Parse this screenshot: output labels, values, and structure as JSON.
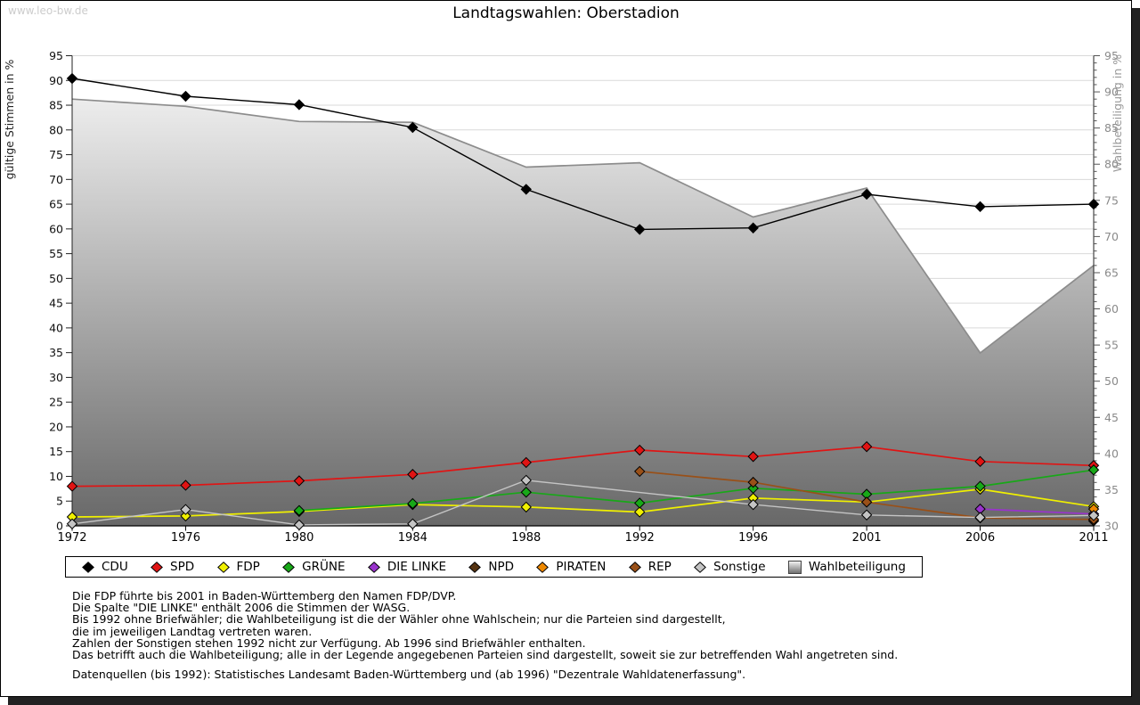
{
  "watermark": "www.leo-bw.de",
  "title": "Landtagswahlen: Oberstadion",
  "chart_data": {
    "type": "line",
    "title": "Landtagswahlen: Oberstadion",
    "categories": [
      "1972",
      "1976",
      "1980",
      "1984",
      "1988",
      "1992",
      "1996",
      "2001",
      "2006",
      "2011"
    ],
    "left_axis": {
      "label": "gültige Stimmen in %",
      "min": 0,
      "max": 95,
      "step": 5
    },
    "right_axis": {
      "label": "Wahlbeteiligung in %",
      "min": 30,
      "max": 95,
      "step": 5,
      "minor_step": 1
    },
    "grid": true,
    "legend_position": "bottom",
    "area_fill_top": "#fafafa",
    "area_fill_bottom": "#686868",
    "series": [
      {
        "name": "CDU",
        "type": "line",
        "axis": "left",
        "color": "#000000",
        "values": [
          90.4,
          86.8,
          85.1,
          80.5,
          68.0,
          59.9,
          60.2,
          67.0,
          64.5,
          65.0
        ]
      },
      {
        "name": "SPD",
        "type": "line",
        "axis": "left",
        "color": "#e01414",
        "values": [
          8.0,
          8.2,
          9.1,
          10.4,
          12.8,
          15.3,
          14.0,
          16.0,
          13.0,
          12.2
        ]
      },
      {
        "name": "FDP",
        "type": "line",
        "axis": "left",
        "color": "#f0f000",
        "values": [
          1.8,
          2.0,
          2.9,
          4.3,
          3.8,
          2.8,
          5.6,
          4.8,
          7.4,
          3.9
        ]
      },
      {
        "name": "GRÜNE",
        "type": "line",
        "axis": "left",
        "color": "#18a818",
        "values": [
          null,
          null,
          3.1,
          4.5,
          6.8,
          4.6,
          7.6,
          6.4,
          8.0,
          11.3
        ]
      },
      {
        "name": "DIE LINKE",
        "type": "line",
        "axis": "left",
        "color": "#9933cc",
        "values": [
          null,
          null,
          null,
          null,
          null,
          null,
          null,
          null,
          3.4,
          2.4
        ]
      },
      {
        "name": "NPD",
        "type": "line",
        "axis": "left",
        "color": "#553311",
        "values": [
          null,
          null,
          null,
          null,
          null,
          null,
          null,
          null,
          null,
          1.0
        ]
      },
      {
        "name": "PIRATEN",
        "type": "line",
        "axis": "left",
        "color": "#ee8800",
        "values": [
          null,
          null,
          null,
          null,
          null,
          null,
          null,
          null,
          null,
          3.4
        ]
      },
      {
        "name": "REP",
        "type": "line",
        "axis": "left",
        "color": "#995018",
        "values": [
          null,
          null,
          null,
          null,
          null,
          11.0,
          8.8,
          4.8,
          1.6,
          1.3
        ]
      },
      {
        "name": "Sonstige",
        "type": "line",
        "axis": "left",
        "color": "#c4c4c4",
        "values": [
          0.4,
          3.3,
          0.2,
          0.4,
          9.2,
          null,
          4.3,
          2.2,
          1.7,
          2.1
        ]
      },
      {
        "name": "Wahlbeteiligung",
        "type": "area",
        "axis": "right",
        "color": "#8c8c8c",
        "values": [
          89.0,
          88.0,
          85.9,
          85.8,
          79.6,
          80.2,
          72.7,
          76.7,
          53.9,
          66.0
        ]
      }
    ]
  },
  "footnotes": [
    "Die FDP führte bis 2001 in Baden-Württemberg den Namen FDP/DVP.",
    "Die Spalte \"DIE LINKE\" enthält 2006 die Stimmen der WASG.",
    "Bis 1992 ohne Briefwähler; die Wahlbeteiligung ist die der Wähler ohne Wahlschein; nur die Parteien sind dargestellt,",
    "die im jeweiligen Landtag vertreten waren.",
    "Zahlen der Sonstigen stehen 1992 nicht zur Verfügung. Ab 1996 sind Briefwähler enthalten.",
    "Das betrifft auch die Wahlbeteiligung; alle in der Legende angegebenen Parteien sind dargestellt, soweit sie zur betreffenden Wahl angetreten sind."
  ],
  "datasource": "Datenquellen (bis 1992): Statistisches Landesamt Baden-Württemberg und (ab 1996) \"Dezentrale Wahldatenerfassung\"."
}
